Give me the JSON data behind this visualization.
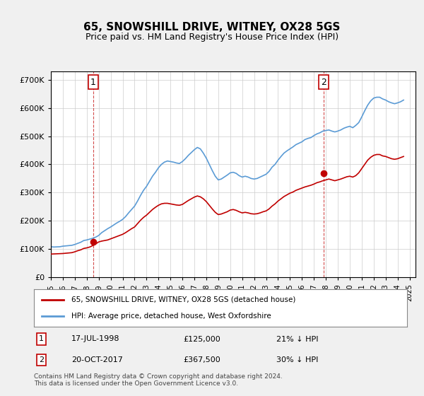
{
  "title": "65, SNOWSHILL DRIVE, WITNEY, OX28 5GS",
  "subtitle": "Price paid vs. HM Land Registry's House Price Index (HPI)",
  "ylabel_ticks": [
    "£0",
    "£100K",
    "£200K",
    "£300K",
    "£400K",
    "£500K",
    "£600K",
    "£700K"
  ],
  "ylim": [
    0,
    730000
  ],
  "xlim_start": 1995.0,
  "xlim_end": 2025.5,
  "hpi_color": "#5b9bd5",
  "price_color": "#c00000",
  "transaction1_date": "17-JUL-1998",
  "transaction1_price": 125000,
  "transaction1_label": "21% ↓ HPI",
  "transaction1_x": 1998.54,
  "transaction1_y": 125000,
  "transaction2_date": "20-OCT-2017",
  "transaction2_price": 367500,
  "transaction2_label": "30% ↓ HPI",
  "transaction2_x": 2017.8,
  "transaction2_y": 367500,
  "legend_label_red": "65, SNOWSHILL DRIVE, WITNEY, OX28 5GS (detached house)",
  "legend_label_blue": "HPI: Average price, detached house, West Oxfordshire",
  "footer": "Contains HM Land Registry data © Crown copyright and database right 2024.\nThis data is licensed under the Open Government Licence v3.0.",
  "background_color": "#f0f0f0",
  "plot_background": "#ffffff",
  "hpi_data_x": [
    1995.0,
    1995.25,
    1995.5,
    1995.75,
    1996.0,
    1996.25,
    1996.5,
    1996.75,
    1997.0,
    1997.25,
    1997.5,
    1997.75,
    1998.0,
    1998.25,
    1998.5,
    1998.75,
    1999.0,
    1999.25,
    1999.5,
    1999.75,
    2000.0,
    2000.25,
    2000.5,
    2000.75,
    2001.0,
    2001.25,
    2001.5,
    2001.75,
    2002.0,
    2002.25,
    2002.5,
    2002.75,
    2003.0,
    2003.25,
    2003.5,
    2003.75,
    2004.0,
    2004.25,
    2004.5,
    2004.75,
    2005.0,
    2005.25,
    2005.5,
    2005.75,
    2006.0,
    2006.25,
    2006.5,
    2006.75,
    2007.0,
    2007.25,
    2007.5,
    2007.75,
    2008.0,
    2008.25,
    2008.5,
    2008.75,
    2009.0,
    2009.25,
    2009.5,
    2009.75,
    2010.0,
    2010.25,
    2010.5,
    2010.75,
    2011.0,
    2011.25,
    2011.5,
    2011.75,
    2012.0,
    2012.25,
    2012.5,
    2012.75,
    2013.0,
    2013.25,
    2013.5,
    2013.75,
    2014.0,
    2014.25,
    2014.5,
    2014.75,
    2015.0,
    2015.25,
    2015.5,
    2015.75,
    2016.0,
    2016.25,
    2016.5,
    2016.75,
    2017.0,
    2017.25,
    2017.5,
    2017.75,
    2018.0,
    2018.25,
    2018.5,
    2018.75,
    2019.0,
    2019.25,
    2019.5,
    2019.75,
    2020.0,
    2020.25,
    2020.5,
    2020.75,
    2021.0,
    2021.25,
    2021.5,
    2021.75,
    2022.0,
    2022.25,
    2022.5,
    2022.75,
    2023.0,
    2023.25,
    2023.5,
    2023.75,
    2024.0,
    2024.25,
    2024.5
  ],
  "hpi_data_y": [
    108000,
    107000,
    107500,
    108000,
    110000,
    111000,
    112000,
    113000,
    116000,
    120000,
    124000,
    130000,
    132000,
    135000,
    138000,
    142000,
    148000,
    158000,
    165000,
    172000,
    178000,
    185000,
    192000,
    198000,
    205000,
    215000,
    228000,
    240000,
    252000,
    270000,
    290000,
    308000,
    322000,
    340000,
    358000,
    372000,
    388000,
    400000,
    408000,
    412000,
    410000,
    408000,
    405000,
    403000,
    410000,
    420000,
    432000,
    442000,
    452000,
    460000,
    455000,
    440000,
    422000,
    400000,
    378000,
    358000,
    345000,
    348000,
    355000,
    362000,
    370000,
    372000,
    368000,
    360000,
    355000,
    358000,
    355000,
    350000,
    348000,
    350000,
    355000,
    360000,
    365000,
    375000,
    390000,
    400000,
    415000,
    428000,
    440000,
    448000,
    455000,
    462000,
    470000,
    475000,
    480000,
    488000,
    492000,
    495000,
    502000,
    508000,
    512000,
    518000,
    520000,
    522000,
    518000,
    515000,
    518000,
    522000,
    528000,
    532000,
    535000,
    530000,
    538000,
    548000,
    568000,
    590000,
    610000,
    625000,
    635000,
    638000,
    638000,
    632000,
    628000,
    622000,
    618000,
    615000,
    618000,
    622000,
    628000
  ],
  "price_data_x": [
    1995.0,
    1995.25,
    1995.5,
    1995.75,
    1996.0,
    1996.25,
    1996.5,
    1996.75,
    1997.0,
    1997.25,
    1997.5,
    1997.75,
    1998.0,
    1998.25,
    1998.5,
    1998.75,
    1999.0,
    1999.25,
    1999.5,
    1999.75,
    2000.0,
    2000.25,
    2000.5,
    2000.75,
    2001.0,
    2001.25,
    2001.5,
    2001.75,
    2002.0,
    2002.25,
    2002.5,
    2002.75,
    2003.0,
    2003.25,
    2003.5,
    2003.75,
    2004.0,
    2004.25,
    2004.5,
    2004.75,
    2005.0,
    2005.25,
    2005.5,
    2005.75,
    2006.0,
    2006.25,
    2006.5,
    2006.75,
    2007.0,
    2007.25,
    2007.5,
    2007.75,
    2008.0,
    2008.25,
    2008.5,
    2008.75,
    2009.0,
    2009.25,
    2009.5,
    2009.75,
    2010.0,
    2010.25,
    2010.5,
    2010.75,
    2011.0,
    2011.25,
    2011.5,
    2011.75,
    2012.0,
    2012.25,
    2012.5,
    2012.75,
    2013.0,
    2013.25,
    2013.5,
    2013.75,
    2014.0,
    2014.25,
    2014.5,
    2014.75,
    2015.0,
    2015.25,
    2015.5,
    2015.75,
    2016.0,
    2016.25,
    2016.5,
    2016.75,
    2017.0,
    2017.25,
    2017.5,
    2017.75,
    2018.0,
    2018.25,
    2018.5,
    2018.75,
    2019.0,
    2019.25,
    2019.5,
    2019.75,
    2020.0,
    2020.25,
    2020.5,
    2020.75,
    2021.0,
    2021.25,
    2021.5,
    2021.75,
    2022.0,
    2022.25,
    2022.5,
    2022.75,
    2023.0,
    2023.25,
    2023.5,
    2023.75,
    2024.0,
    2024.25,
    2024.5
  ],
  "price_data_y": [
    82000,
    82500,
    83000,
    83500,
    84000,
    85000,
    86000,
    87000,
    90000,
    94000,
    97000,
    102000,
    104000,
    107000,
    112000,
    118000,
    125000,
    128000,
    130000,
    132000,
    136000,
    140000,
    144000,
    148000,
    152000,
    158000,
    165000,
    172000,
    178000,
    190000,
    202000,
    212000,
    220000,
    230000,
    240000,
    248000,
    255000,
    260000,
    262000,
    262000,
    260000,
    258000,
    256000,
    255000,
    258000,
    265000,
    272000,
    278000,
    284000,
    288000,
    285000,
    278000,
    268000,
    255000,
    242000,
    230000,
    222000,
    224000,
    228000,
    232000,
    238000,
    240000,
    237000,
    232000,
    228000,
    230000,
    228000,
    225000,
    224000,
    225000,
    228000,
    232000,
    235000,
    242000,
    252000,
    260000,
    270000,
    278000,
    286000,
    292000,
    298000,
    302000,
    308000,
    312000,
    316000,
    320000,
    323000,
    326000,
    330000,
    335000,
    338000,
    342000,
    345000,
    348000,
    345000,
    342000,
    345000,
    348000,
    352000,
    356000,
    358000,
    355000,
    360000,
    370000,
    385000,
    400000,
    415000,
    425000,
    432000,
    435000,
    435000,
    430000,
    428000,
    424000,
    420000,
    418000,
    420000,
    424000,
    428000
  ]
}
